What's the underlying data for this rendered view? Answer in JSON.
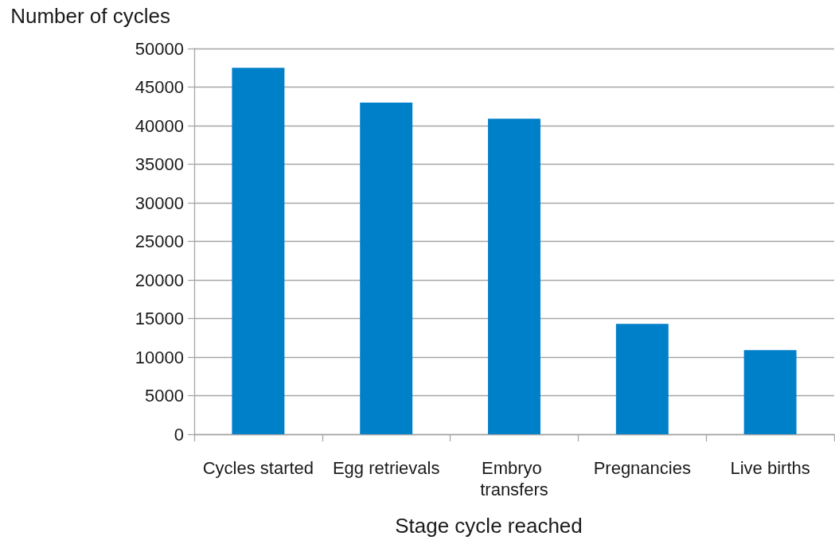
{
  "chart_data": {
    "type": "bar",
    "categories": [
      "Cycles started",
      "Egg retrievals",
      "Embryo transfers",
      "Pregnancies",
      "Live births"
    ],
    "values": [
      47500,
      43000,
      40900,
      14300,
      10900
    ],
    "color": "#0080c8",
    "xlabel": "Stage cycle reached",
    "ylabel": "Number of cycles",
    "ylim": [
      0,
      50000
    ],
    "yticks": [
      0,
      5000,
      10000,
      15000,
      20000,
      25000,
      30000,
      35000,
      40000,
      45000,
      50000
    ],
    "grid": "y"
  }
}
